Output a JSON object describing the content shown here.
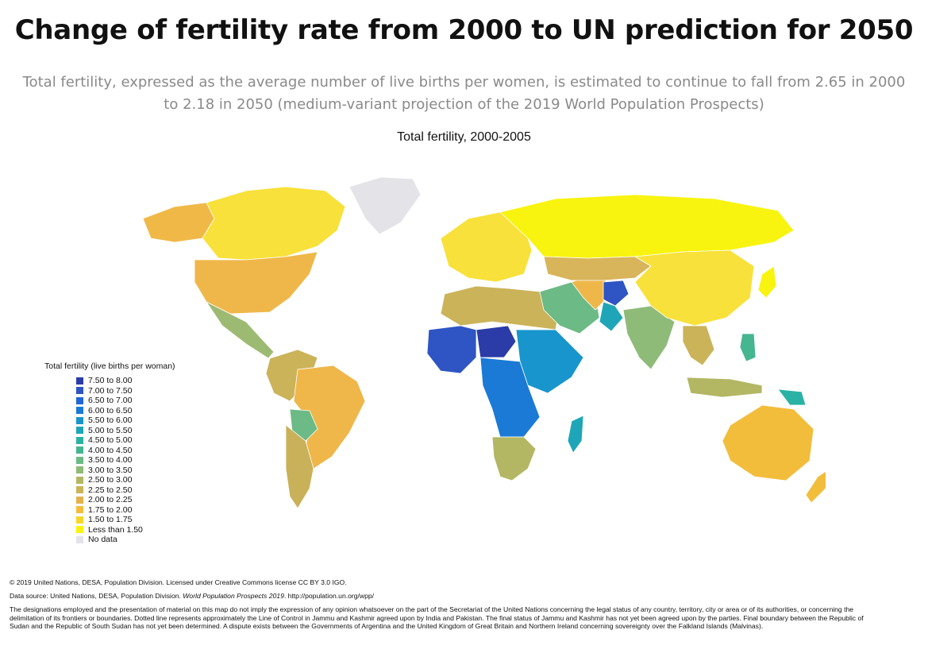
{
  "title": "Change of fertility rate from 2000 to UN prediction for 2050",
  "subtitle": "Total fertility, expressed as the average number of live births per women, is estimated to continue to fall from 2.65 in 2000 to 2.18 in 2050 (medium-variant projection of the 2019 World Population Prospects)",
  "map_title": "Total fertility, 2000-2005",
  "legend": {
    "title": "Total fertility (live births per woman)",
    "items": [
      {
        "label": "7.50 to 8.00",
        "color": "#2b3ca8"
      },
      {
        "label": "7.00 to 7.50",
        "color": "#2f55c4"
      },
      {
        "label": "6.50 to 7.00",
        "color": "#2166d4"
      },
      {
        "label": "6.00 to 6.50",
        "color": "#1a7ad6"
      },
      {
        "label": "5.50 to 6.00",
        "color": "#1895cc"
      },
      {
        "label": "5.00 to 5.50",
        "color": "#1ea6b8"
      },
      {
        "label": "4.50 to 5.00",
        "color": "#2ab3a4"
      },
      {
        "label": "4.00 to 4.50",
        "color": "#45b68f"
      },
      {
        "label": "3.50 to 4.00",
        "color": "#6cba85"
      },
      {
        "label": "3.00 to 3.50",
        "color": "#8fbb79"
      },
      {
        "label": "2.50 to 3.00",
        "color": "#b3b763"
      },
      {
        "label": "2.25 to 2.50",
        "color": "#cbb35a"
      },
      {
        "label": "2.00 to 2.25",
        "color": "#e3b24f"
      },
      {
        "label": "1.75 to 2.00",
        "color": "#f3bd3c"
      },
      {
        "label": "1.50 to 1.75",
        "color": "#f7d62a"
      },
      {
        "label": "Less than 1.50",
        "color": "#f8f40f"
      },
      {
        "label": "No data",
        "color": "#e3e3e8"
      }
    ]
  },
  "regions": [
    {
      "id": "canada",
      "color": "#f8e13a"
    },
    {
      "id": "alaska",
      "color": "#f0b947"
    },
    {
      "id": "greenland",
      "color": "#e3e3e8"
    },
    {
      "id": "usa",
      "color": "#efb74a"
    },
    {
      "id": "mexico-central-america",
      "color": "#9dba72"
    },
    {
      "id": "south-america-north",
      "color": "#cbb35a"
    },
    {
      "id": "brazil",
      "color": "#efb74a"
    },
    {
      "id": "bolivia",
      "color": "#6cba85"
    },
    {
      "id": "southern-cone",
      "color": "#c9b15a"
    },
    {
      "id": "europe",
      "color": "#f8e13a"
    },
    {
      "id": "russia",
      "color": "#f8f40f"
    },
    {
      "id": "north-africa",
      "color": "#cbb35a"
    },
    {
      "id": "sahel",
      "color": "#2b3ca8"
    },
    {
      "id": "west-africa",
      "color": "#2f55c4"
    },
    {
      "id": "central-africa",
      "color": "#1a7ad6"
    },
    {
      "id": "east-africa",
      "color": "#1895cc"
    },
    {
      "id": "southern-africa",
      "color": "#b3b763"
    },
    {
      "id": "madagascar",
      "color": "#1ea6b8"
    },
    {
      "id": "middle-east",
      "color": "#6cba85"
    },
    {
      "id": "iran",
      "color": "#efb74a"
    },
    {
      "id": "afghanistan",
      "color": "#2f55c4"
    },
    {
      "id": "pakistan",
      "color": "#1ea6b8"
    },
    {
      "id": "india",
      "color": "#8fbb79"
    },
    {
      "id": "central-asia",
      "color": "#d8b45a"
    },
    {
      "id": "china-mongolia",
      "color": "#f8e13a"
    },
    {
      "id": "japan",
      "color": "#f8f40f"
    },
    {
      "id": "southeast-asia",
      "color": "#cbb35a"
    },
    {
      "id": "philippines",
      "color": "#45b68f"
    },
    {
      "id": "indonesia",
      "color": "#b3b763"
    },
    {
      "id": "papua-new-guinea",
      "color": "#2ab3a4"
    },
    {
      "id": "australia",
      "color": "#f3bd3c"
    },
    {
      "id": "new-zealand",
      "color": "#f3bd3c"
    }
  ],
  "footer": {
    "license": "© 2019 United Nations, DESA, Population Division. Licensed under Creative Commons license CC BY 3.0 IGO.",
    "source_prefix": "Data source: United Nations, DESA, Population Division.",
    "source_title": "World Population Prospects 2019",
    "source_suffix": ". http://population.un.org/wpp/",
    "disclaimer": "The designations employed and the presentation of material on this map do not imply the expression of any opinion whatsoever on the part of the Secretariat of the United Nations concerning the legal status of any country, territory, city or area or of its authorities, or concerning the delimitation of its frontiers or boundaries. Dotted line represents approximately the Line of Control in Jammu and Kashmir agreed upon by India and Pakistan. The final status of Jammu and Kashmir has not yet been agreed upon by the parties. Final boundary between the Republic of Sudan and the Republic of South Sudan has not yet been determined. A dispute exists between the Governments of Argentina and the United Kingdom of Great Britain and Northern Ireland concerning sovereignty over the Falkland Islands (Malvinas)."
  }
}
